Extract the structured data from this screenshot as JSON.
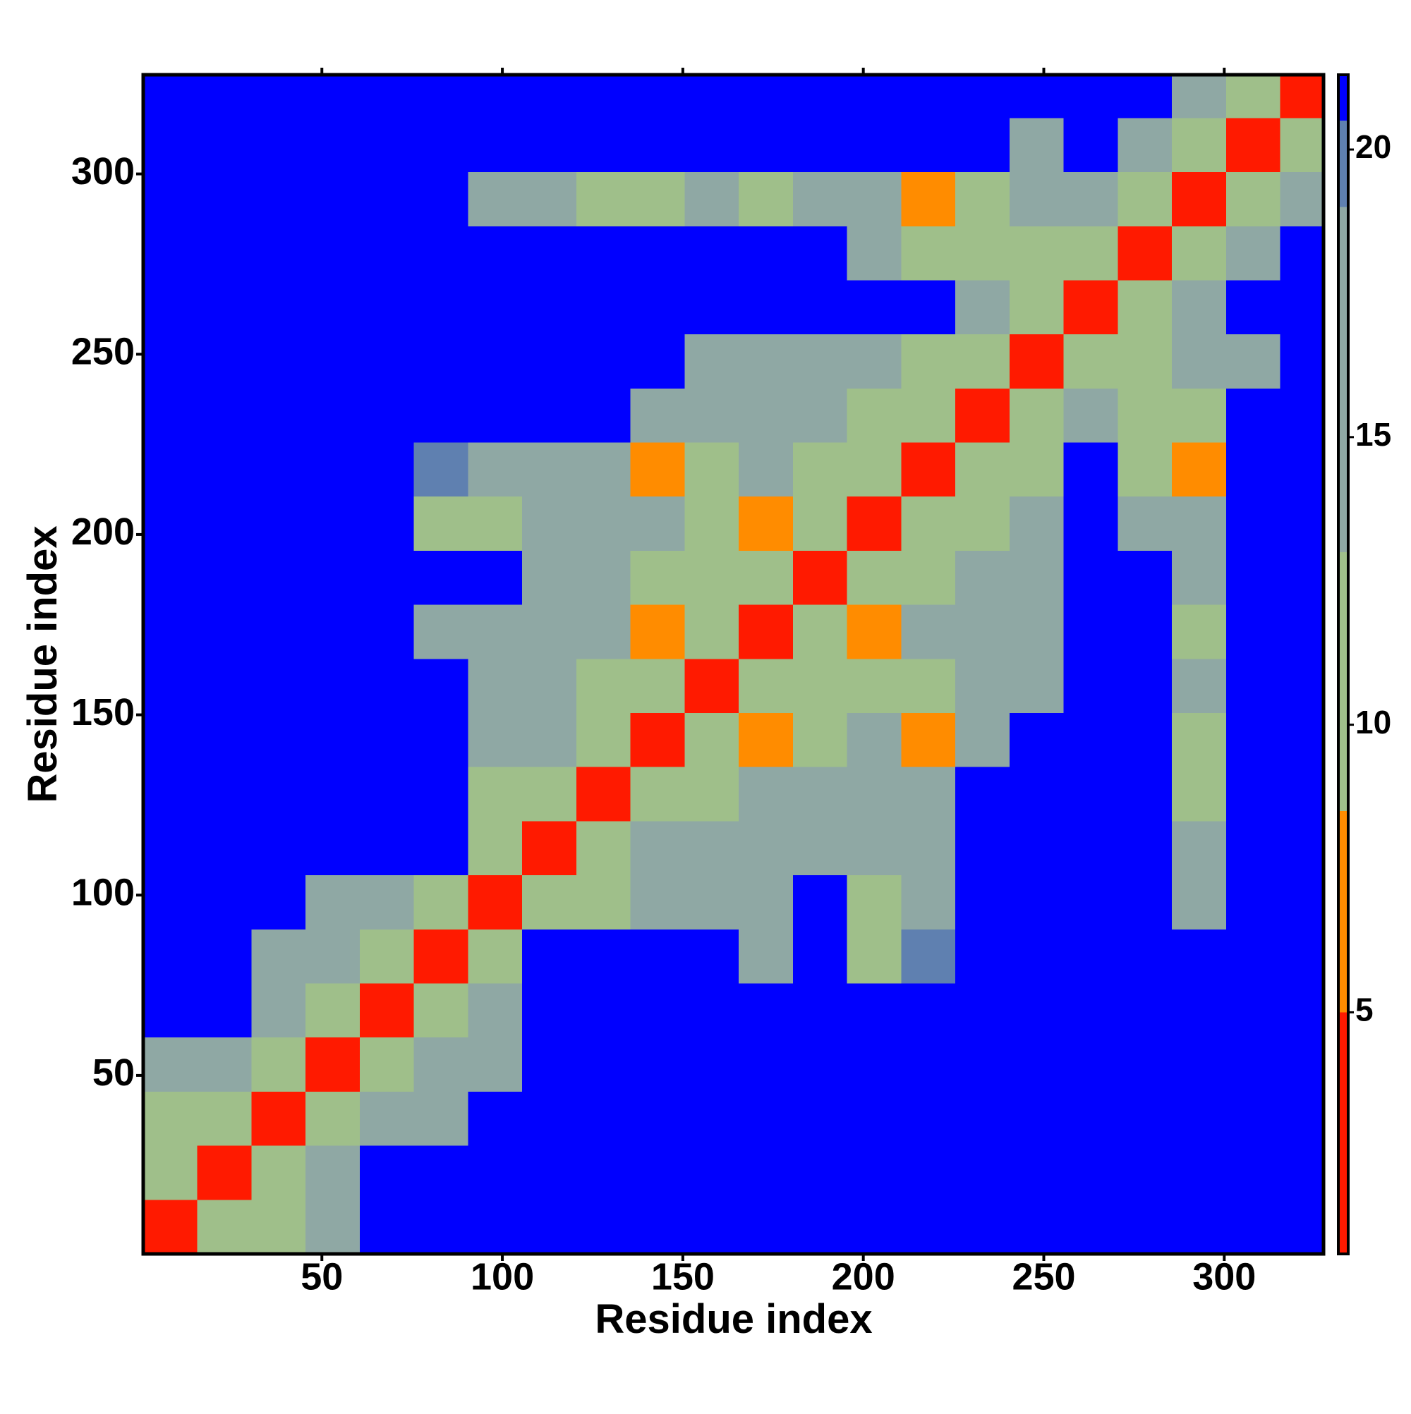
{
  "chart_data": {
    "type": "heatmap",
    "xlabel": "Residue index",
    "ylabel": "Residue index",
    "xlim": [
      0.5,
      327.5
    ],
    "ylim": [
      0.5,
      327.5
    ],
    "xticks": [
      50,
      100,
      150,
      200,
      250,
      300
    ],
    "yticks": [
      50,
      100,
      150,
      200,
      250,
      300
    ],
    "x_edges": [
      0.5,
      15.5,
      30.5,
      45.5,
      60.5,
      75.5,
      90.5,
      105.5,
      120.5,
      135.5,
      150.5,
      165.5,
      180.5,
      195.5,
      210.5,
      225.5,
      240.5,
      255.5,
      270.5,
      285.5,
      300.5,
      315.5,
      327.5
    ],
    "y_edges": [
      0.5,
      15.5,
      30.5,
      45.5,
      60.5,
      75.5,
      90.5,
      105.5,
      120.5,
      135.5,
      150.5,
      165.5,
      180.5,
      195.5,
      210.5,
      225.5,
      240.5,
      255.5,
      270.5,
      285.5,
      300.5,
      315.5,
      327.5
    ],
    "z": [
      [
        4,
        9,
        12,
        18,
        21,
        21,
        21,
        21,
        21,
        21,
        21,
        21,
        21,
        21,
        21,
        21,
        21,
        21,
        21,
        21,
        21,
        21
      ],
      [
        9,
        4,
        9,
        15,
        21,
        21,
        21,
        21,
        21,
        21,
        21,
        21,
        21,
        21,
        21,
        21,
        21,
        21,
        21,
        21,
        21,
        21
      ],
      [
        12,
        9,
        4,
        12,
        15,
        17,
        21,
        21,
        21,
        21,
        21,
        21,
        21,
        21,
        21,
        21,
        21,
        21,
        21,
        21,
        21,
        21
      ],
      [
        18,
        15,
        12,
        4,
        10,
        13,
        17,
        21,
        21,
        21,
        21,
        21,
        21,
        21,
        21,
        21,
        21,
        21,
        21,
        21,
        21,
        21
      ],
      [
        21,
        21,
        15,
        10,
        4,
        9,
        14,
        21,
        21,
        21,
        21,
        21,
        21,
        21,
        21,
        21,
        21,
        21,
        21,
        21,
        21,
        21
      ],
      [
        21,
        21,
        17,
        13,
        9,
        4,
        10,
        21,
        21,
        21,
        21,
        18,
        21,
        11,
        19,
        21,
        21,
        21,
        21,
        21,
        21,
        21
      ],
      [
        21,
        21,
        21,
        17,
        14,
        10,
        4,
        10,
        11,
        15,
        14,
        18,
        21,
        12,
        18,
        21,
        21,
        21,
        21,
        17,
        21,
        21
      ],
      [
        21,
        21,
        21,
        21,
        21,
        21,
        10,
        4,
        9,
        13,
        13,
        15,
        16,
        17,
        17,
        21,
        21,
        21,
        21,
        17,
        21,
        21
      ],
      [
        21,
        21,
        21,
        21,
        21,
        21,
        11,
        9,
        4,
        9,
        12,
        14,
        13,
        16,
        15,
        21,
        21,
        21,
        21,
        12,
        21,
        21
      ],
      [
        21,
        21,
        21,
        21,
        21,
        21,
        15,
        13,
        9,
        4,
        9,
        8,
        12,
        13,
        8,
        15,
        21,
        21,
        21,
        9,
        21,
        21
      ],
      [
        21,
        21,
        21,
        21,
        21,
        21,
        14,
        13,
        12,
        9,
        4,
        9,
        9,
        12,
        11,
        14,
        16,
        21,
        21,
        14,
        21,
        21
      ],
      [
        21,
        21,
        21,
        21,
        21,
        18,
        18,
        15,
        14,
        8,
        9,
        4,
        9,
        8,
        13,
        13,
        15,
        21,
        21,
        12,
        21,
        21
      ],
      [
        21,
        21,
        21,
        21,
        21,
        21,
        21,
        16,
        13,
        12,
        9,
        9,
        4,
        9,
        11,
        13,
        14,
        21,
        21,
        17,
        21,
        21
      ],
      [
        21,
        21,
        21,
        21,
        21,
        11,
        12,
        17,
        16,
        13,
        12,
        8,
        9,
        4,
        9,
        11,
        14,
        21,
        16,
        15,
        21,
        21
      ],
      [
        21,
        21,
        21,
        21,
        21,
        19,
        18,
        17,
        15,
        8,
        11,
        13,
        11,
        9,
        4,
        9,
        12,
        21,
        12,
        8,
        21,
        21
      ],
      [
        21,
        21,
        21,
        21,
        21,
        21,
        21,
        21,
        21,
        15,
        14,
        13,
        13,
        11,
        9,
        4,
        9,
        14,
        9,
        12,
        21,
        21
      ],
      [
        21,
        21,
        21,
        21,
        21,
        21,
        21,
        21,
        21,
        21,
        16,
        15,
        14,
        14,
        12,
        9,
        4,
        9,
        12,
        14,
        18,
        21
      ],
      [
        21,
        21,
        21,
        21,
        21,
        21,
        21,
        21,
        21,
        21,
        21,
        21,
        21,
        21,
        21,
        14,
        9,
        4,
        9,
        14,
        21,
        21
      ],
      [
        21,
        21,
        21,
        21,
        21,
        21,
        21,
        21,
        21,
        21,
        21,
        21,
        21,
        16,
        12,
        9,
        12,
        9,
        4,
        9,
        14,
        21
      ],
      [
        21,
        21,
        21,
        21,
        21,
        21,
        17,
        17,
        12,
        9,
        14,
        12,
        17,
        15,
        8,
        12,
        14,
        14,
        9,
        4,
        9,
        14
      ],
      [
        21,
        21,
        21,
        21,
        21,
        21,
        21,
        21,
        21,
        21,
        21,
        21,
        21,
        21,
        21,
        21,
        18,
        21,
        14,
        9,
        4,
        9
      ],
      [
        21,
        21,
        21,
        21,
        21,
        21,
        21,
        21,
        21,
        21,
        21,
        21,
        21,
        21,
        21,
        21,
        21,
        21,
        21,
        14,
        9,
        4
      ]
    ],
    "colorbar": {
      "lim": [
        0.8,
        21.3
      ],
      "ticks": [
        5,
        10,
        15,
        20
      ],
      "bands": [
        {
          "min": 0.8,
          "max": 5,
          "color": "#ff1a00"
        },
        {
          "min": 5,
          "max": 8.5,
          "color": "#ff8c00"
        },
        {
          "min": 8.5,
          "max": 13,
          "color": "#9fbf8a"
        },
        {
          "min": 13,
          "max": 19,
          "color": "#8fa8a4"
        },
        {
          "min": 19,
          "max": 20.5,
          "color": "#5f80b0"
        },
        {
          "min": 20.5,
          "max": 21.3,
          "color": "#0000ff"
        }
      ]
    }
  }
}
